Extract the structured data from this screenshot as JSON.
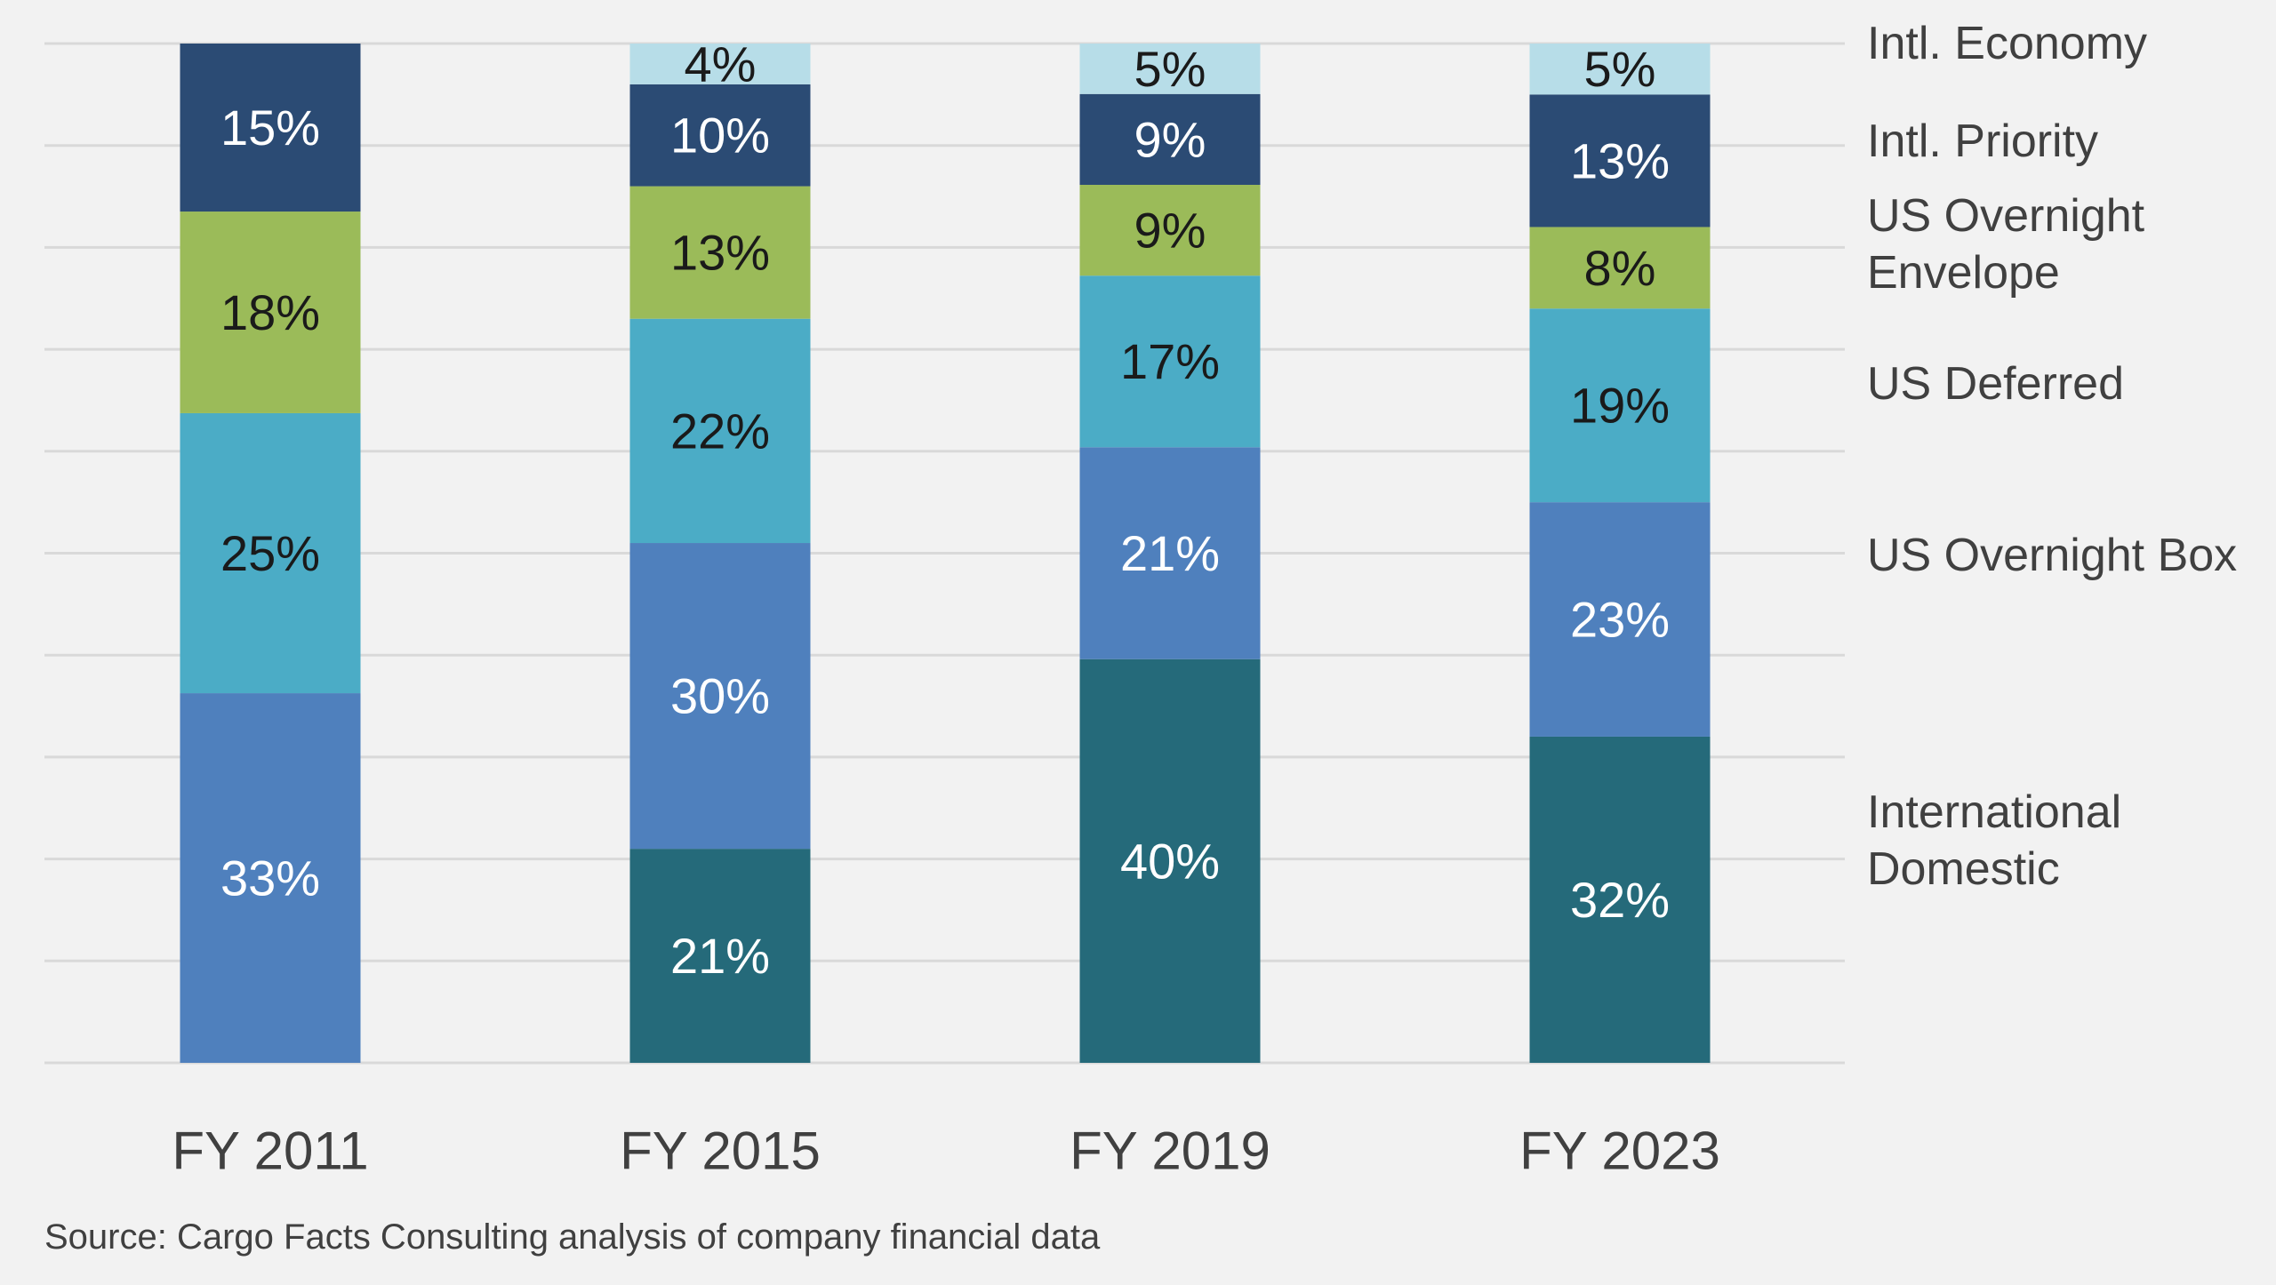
{
  "chart_data": {
    "type": "bar",
    "stacked": true,
    "normalized": true,
    "categories": [
      "FY 2011",
      "FY 2015",
      "FY 2019",
      "FY 2023"
    ],
    "series": [
      {
        "name": "International Domestic",
        "color": "#256a7a",
        "values": [
          0,
          21,
          40,
          32
        ]
      },
      {
        "name": "US Overnight Box",
        "color": "#4f80bd",
        "values": [
          33,
          30,
          21,
          23
        ]
      },
      {
        "name": "US Deferred",
        "color": "#4bacc6",
        "values": [
          25,
          22,
          17,
          19
        ]
      },
      {
        "name": "US Overnight Envelope",
        "color": "#9bbb59",
        "values": [
          18,
          13,
          9,
          8
        ]
      },
      {
        "name": "Intl. Priority",
        "color": "#2b4b74",
        "values": [
          15,
          10,
          9,
          13
        ]
      },
      {
        "name": "Intl. Economy",
        "color": "#b7dde8",
        "values": [
          0,
          4,
          5,
          5
        ]
      }
    ],
    "data_labels": [
      [
        "",
        "33%",
        "25%",
        "18%",
        "15%",
        ""
      ],
      [
        "21%",
        "30%",
        "22%",
        "13%",
        "10%",
        "4%"
      ],
      [
        "40%",
        "21%",
        "17%",
        "9%",
        "9%",
        "5%"
      ],
      [
        "32%",
        "23%",
        "19%",
        "8%",
        "13%",
        "5%"
      ]
    ],
    "label_colors": [
      [
        "#ffffff",
        "#ffffff",
        "#1a1a1a",
        "#1a1a1a",
        "#ffffff",
        "#1a1a1a"
      ],
      [
        "#ffffff",
        "#ffffff",
        "#1a1a1a",
        "#1a1a1a",
        "#ffffff",
        "#1a1a1a"
      ],
      [
        "#ffffff",
        "#ffffff",
        "#1a1a1a",
        "#1a1a1a",
        "#ffffff",
        "#1a1a1a"
      ],
      [
        "#ffffff",
        "#ffffff",
        "#1a1a1a",
        "#1a1a1a",
        "#ffffff",
        "#1a1a1a"
      ]
    ],
    "legend": {
      "placement": "right",
      "entries": [
        {
          "lines": [
            "Intl. Economy"
          ]
        },
        {
          "lines": [
            "Intl. Priority"
          ]
        },
        {
          "lines": [
            "US Overnight",
            "Envelope"
          ]
        },
        {
          "lines": [
            "US Deferred"
          ]
        },
        {
          "lines": [
            "US Overnight Box"
          ]
        },
        {
          "lines": [
            "International",
            "Domestic"
          ]
        }
      ]
    },
    "grid": true,
    "ylim": [
      0,
      100
    ],
    "title": "",
    "xlabel": "",
    "ylabel": ""
  },
  "source": "Source: Cargo Facts Consulting analysis of company financial data",
  "colors": {
    "background": "#f2f2f2",
    "gridline": "#d9d9d9",
    "axis_text": "#404040"
  }
}
